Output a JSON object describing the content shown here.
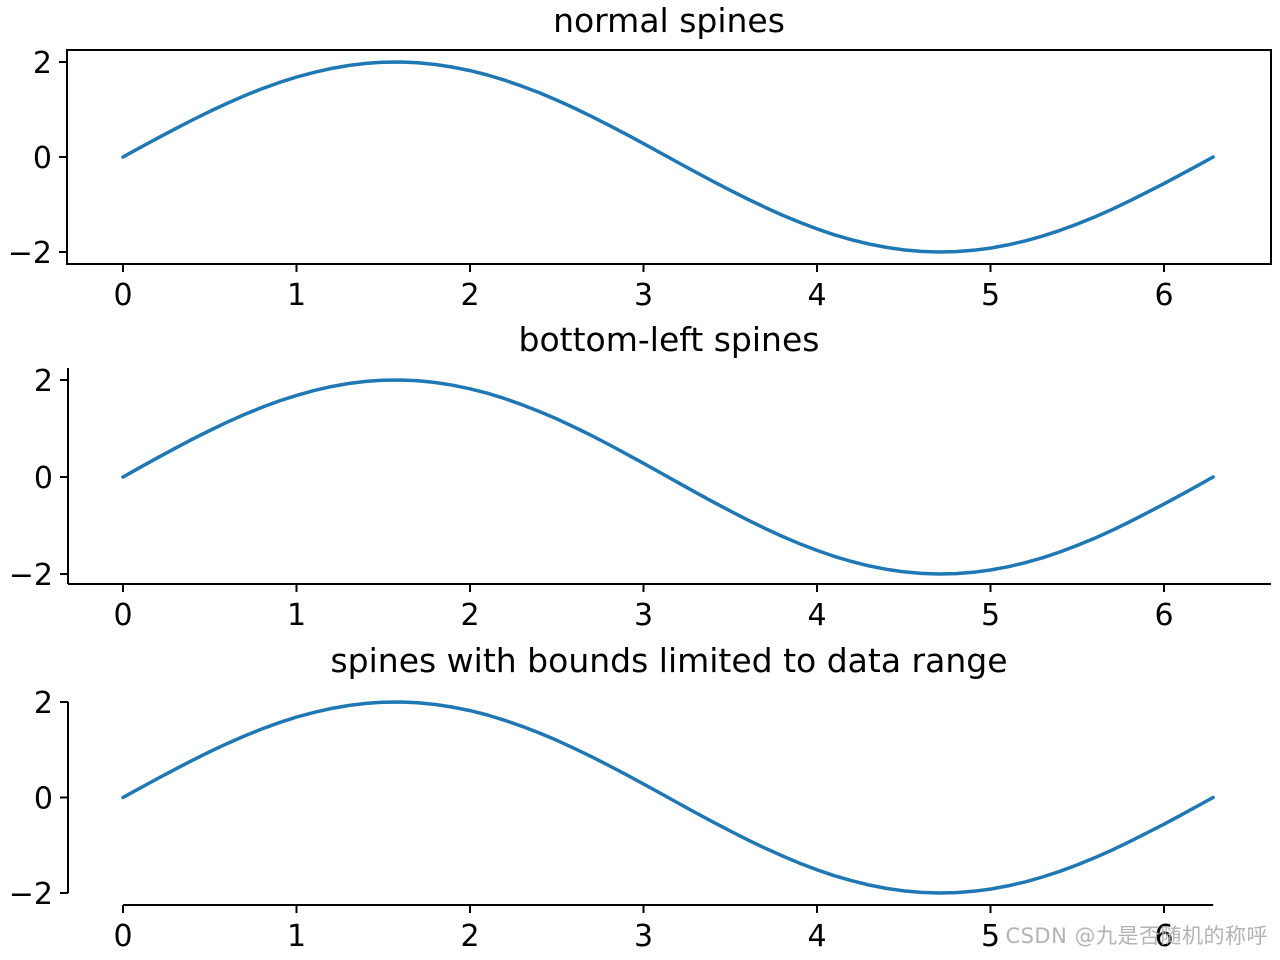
{
  "watermark": {
    "text": "CSDN @九是否随机的称呼",
    "color": "#b3b3b3"
  },
  "chart_data": {
    "type": "line",
    "grid": false,
    "axis_color": "#000000",
    "xlim": [
      -0.314,
      6.597
    ],
    "ylim": [
      -2.2,
      2.2
    ],
    "xticks": {
      "values": [
        0,
        1,
        2,
        3,
        4,
        5,
        6
      ],
      "labels": [
        "0",
        "1",
        "2",
        "3",
        "4",
        "5",
        "6"
      ]
    },
    "yticks": {
      "values": [
        2,
        0,
        -2
      ],
      "labels": [
        "2",
        "0",
        "−2"
      ]
    },
    "series": [
      {
        "color": "#1f77b4",
        "x": [
          0.0,
          0.1,
          0.2,
          0.3,
          0.4,
          0.5,
          0.6,
          0.7,
          0.8,
          0.9,
          1.0,
          1.1,
          1.2,
          1.3,
          1.4,
          1.5,
          1.6,
          1.7,
          1.8,
          1.9,
          2.0,
          2.1,
          2.2,
          2.3,
          2.4,
          2.5,
          2.6,
          2.7,
          2.8,
          2.9,
          3.0,
          3.1,
          3.2,
          3.3,
          3.4,
          3.5,
          3.6,
          3.7,
          3.8,
          3.9,
          4.0,
          4.1,
          4.2,
          4.3,
          4.4,
          4.5,
          4.6,
          4.7,
          4.8,
          4.9,
          5.0,
          5.1,
          5.2,
          5.3,
          5.4,
          5.5,
          5.6,
          5.7,
          5.8,
          5.9,
          6.0,
          6.1,
          6.2,
          6.2832
        ],
        "y": [
          0.0,
          0.2,
          0.397,
          0.591,
          0.779,
          0.959,
          1.129,
          1.288,
          1.435,
          1.567,
          1.683,
          1.782,
          1.864,
          1.927,
          1.971,
          1.995,
          1.999,
          1.983,
          1.948,
          1.893,
          1.819,
          1.727,
          1.617,
          1.491,
          1.351,
          1.197,
          1.031,
          0.855,
          0.67,
          0.479,
          0.282,
          0.083,
          -0.117,
          -0.316,
          -0.511,
          -0.702,
          -0.885,
          -1.06,
          -1.224,
          -1.375,
          -1.514,
          -1.637,
          -1.743,
          -1.832,
          -1.903,
          -1.955,
          -1.987,
          -2.0,
          -1.992,
          -1.965,
          -1.918,
          -1.851,
          -1.767,
          -1.665,
          -1.546,
          -1.411,
          -1.263,
          -1.101,
          -0.928,
          -0.744,
          -0.559,
          -0.365,
          -0.166,
          0.0
        ]
      }
    ],
    "subplots": [
      {
        "title": "normal spines",
        "spines": [
          "left",
          "right",
          "top",
          "bottom"
        ]
      },
      {
        "title": "bottom-left spines",
        "spines": [
          "left",
          "bottom"
        ]
      },
      {
        "title": "spines with bounds limited to data range",
        "spines": [
          "left",
          "bottom"
        ],
        "spine_bounds": {
          "x": [
            0,
            6.2832
          ],
          "y": [
            -2,
            2
          ]
        }
      }
    ]
  }
}
